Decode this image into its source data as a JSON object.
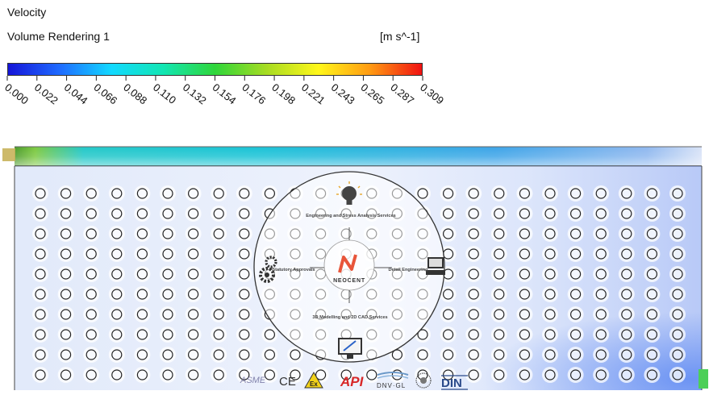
{
  "legend": {
    "title": "Velocity",
    "subtitle": "Volume Rendering 1",
    "units": "[m s^-1]",
    "range": [
      0.0,
      0.309
    ],
    "ticks": [
      "0.000",
      "0.022",
      "0.044",
      "0.066",
      "0.088",
      "0.110",
      "0.132",
      "0.154",
      "0.176",
      "0.198",
      "0.221",
      "0.243",
      "0.265",
      "0.287",
      "0.309"
    ],
    "gradient": [
      "#1515d8",
      "#1f6bff",
      "#12d9ff",
      "#12e6b3",
      "#2fd63a",
      "#a7dc22",
      "#fff71a",
      "#ff9a12",
      "#f01212"
    ]
  },
  "grid": {
    "rows": 10,
    "cols": 26
  },
  "overlay": {
    "brand": "NEOCENT",
    "services": {
      "top": "Engineering and Stress Analysis Services",
      "right": "Detail Engineering",
      "bottom": "3D Modelling and 2D CAD Services",
      "left": "Statutory Approvals"
    }
  },
  "cert_logos": [
    "ASME",
    "CE",
    "Ex",
    "API",
    "DNV·GL",
    "seal",
    "DIN"
  ]
}
